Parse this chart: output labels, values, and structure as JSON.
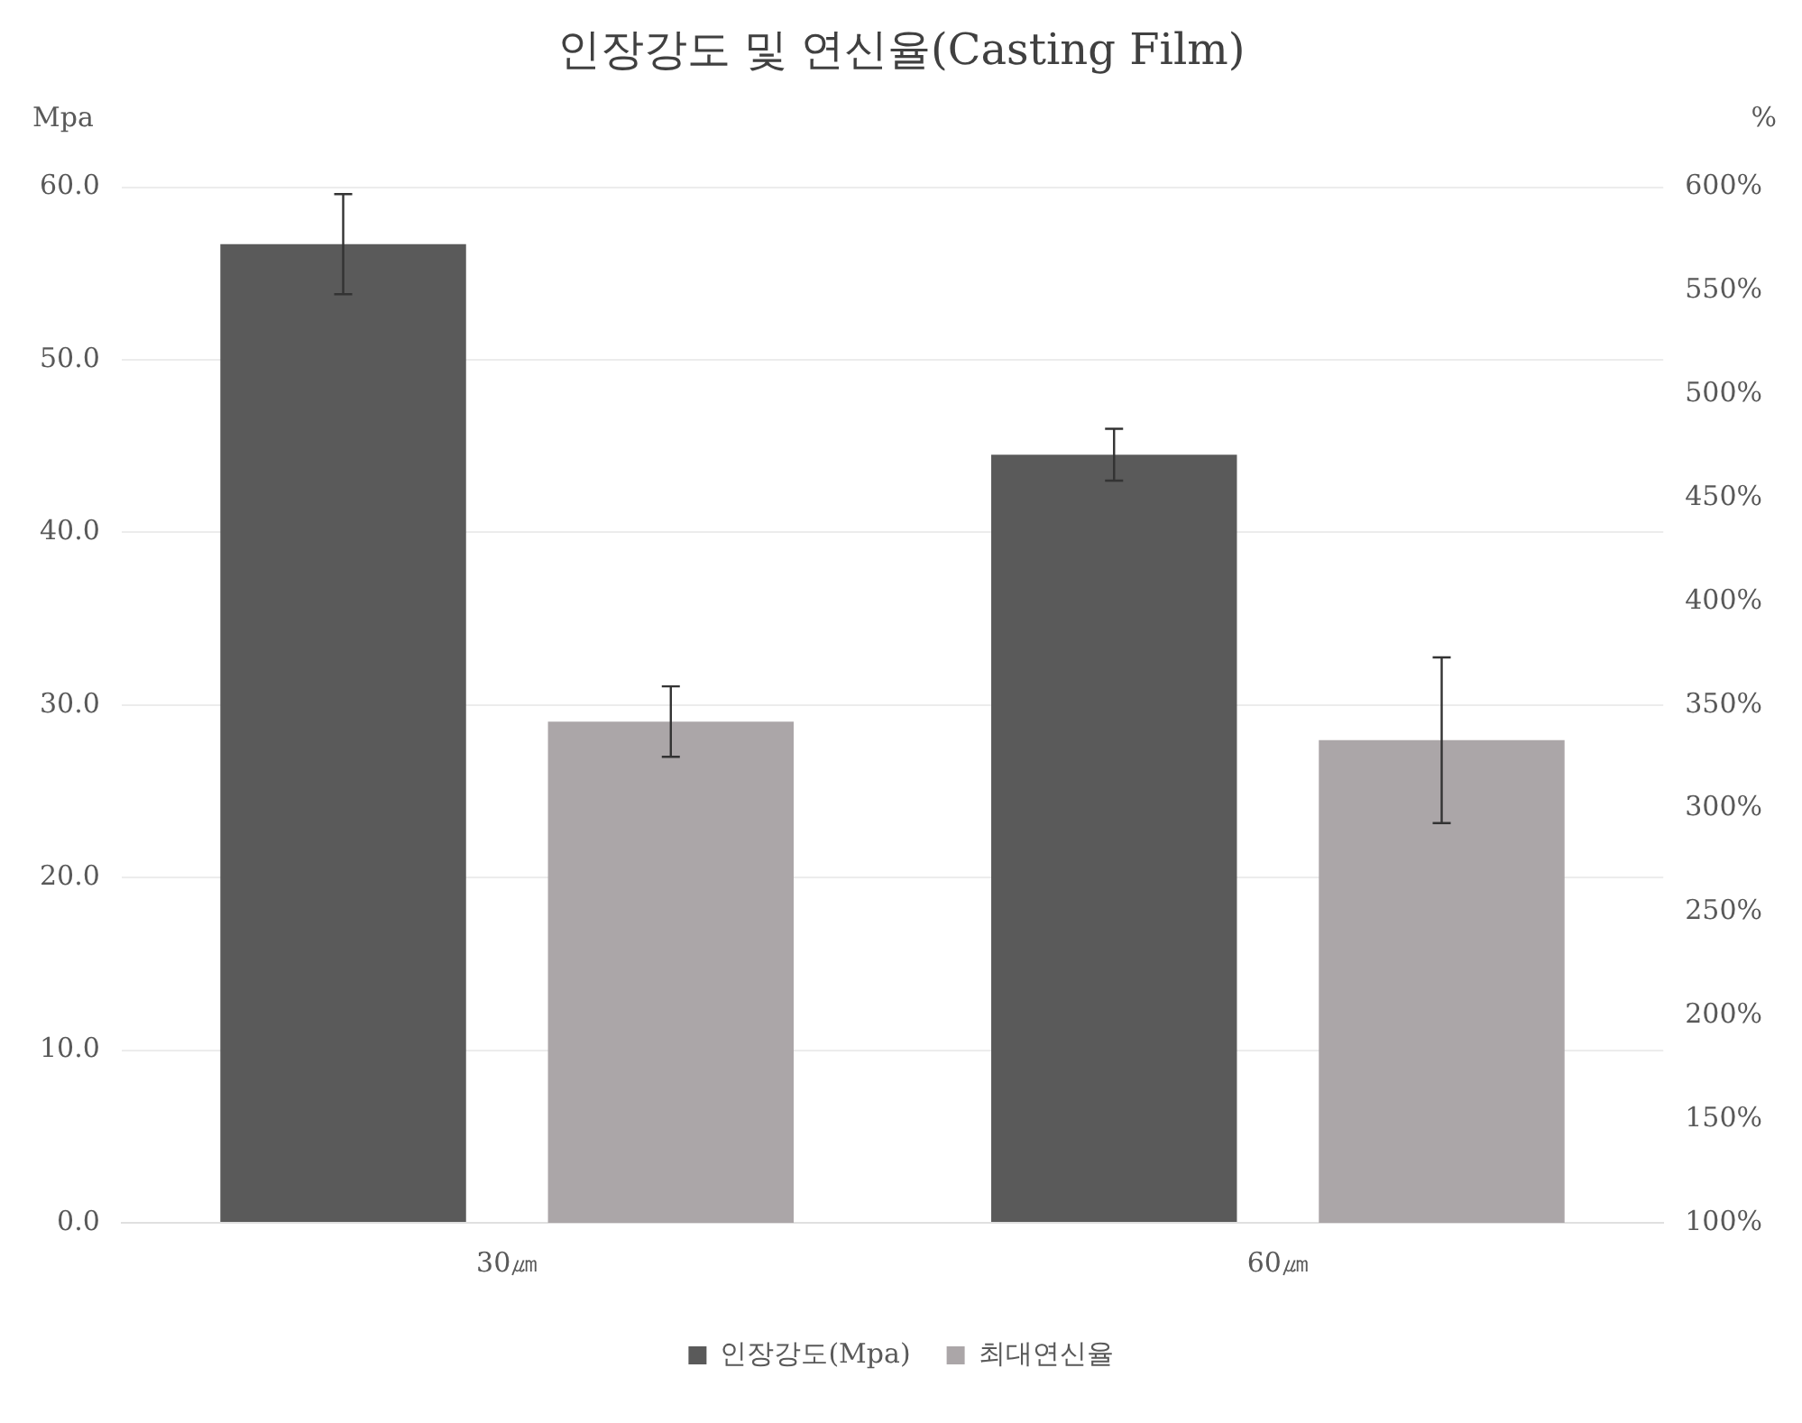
{
  "chart_data": {
    "type": "bar",
    "title": "인장강도 및 연신율(Casting Film)",
    "ylabel": "Mpa",
    "y2label": "%",
    "categories": [
      "30㎛",
      "60㎛"
    ],
    "series": [
      {
        "name": "인장강도(Mpa)",
        "color": "#5a5a5a",
        "values": [
          56.7,
          44.5
        ],
        "errors": [
          2.9,
          1.5
        ]
      },
      {
        "name": "최대연신율",
        "color": "#aba6a8",
        "axis": "y2",
        "values": [
          342,
          333
        ],
        "errors": [
          17,
          40
        ]
      }
    ],
    "ylim": [
      0,
      60
    ],
    "yticks": [
      {
        "value": 0,
        "label": "0.0"
      },
      {
        "value": 10,
        "label": "10.0"
      },
      {
        "value": 20,
        "label": "20.0"
      },
      {
        "value": 30,
        "label": "30.0"
      },
      {
        "value": 40,
        "label": "40.0"
      },
      {
        "value": 50,
        "label": "50.0"
      },
      {
        "value": 60,
        "label": "60.0"
      }
    ],
    "y2lim": [
      100,
      600
    ],
    "y2ticks": [
      {
        "value": 100,
        "label": "100%"
      },
      {
        "value": 150,
        "label": "150%"
      },
      {
        "value": 200,
        "label": "200%"
      },
      {
        "value": 250,
        "label": "250%"
      },
      {
        "value": 300,
        "label": "300%"
      },
      {
        "value": 350,
        "label": "350%"
      },
      {
        "value": 400,
        "label": "400%"
      },
      {
        "value": 450,
        "label": "450%"
      },
      {
        "value": 500,
        "label": "500%"
      },
      {
        "value": 550,
        "label": "550%"
      },
      {
        "value": 600,
        "label": "600%"
      }
    ],
    "grid": "y",
    "legend": "bottom"
  }
}
